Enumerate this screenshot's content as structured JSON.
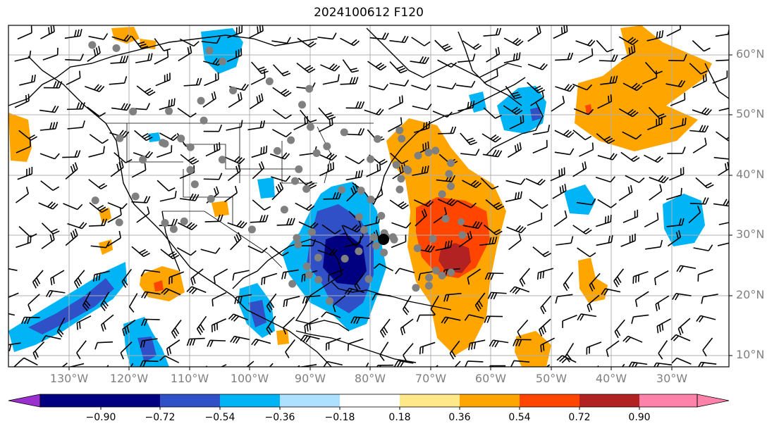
{
  "title": "2024100612 F120",
  "lat_labels": [
    "60°N",
    "50°N",
    "40°N",
    "30°N",
    "20°N",
    "10°N"
  ],
  "lon_labels": [
    "130°W",
    "120°W",
    "110°W",
    "100°W",
    "90°W",
    "80°W",
    "70°W",
    "60°W",
    "50°W",
    "40°W",
    "30°W"
  ],
  "colorbar": {
    "ticks": [
      "−0.90",
      "−0.72",
      "−0.54",
      "−0.36",
      "−0.18",
      "0.18",
      "0.36",
      "0.54",
      "0.72",
      "0.90"
    ],
    "colors": [
      "#9b30d0",
      "#000080",
      "#3050c8",
      "#00b4f5",
      "#aee0ff",
      "#ffffff",
      "#ffe888",
      "#ffa500",
      "#ff4500",
      "#b22222",
      "#ff82ab"
    ]
  },
  "markers": {
    "gray_dot_color": "#808080",
    "storm_center_color": "#000000"
  }
}
